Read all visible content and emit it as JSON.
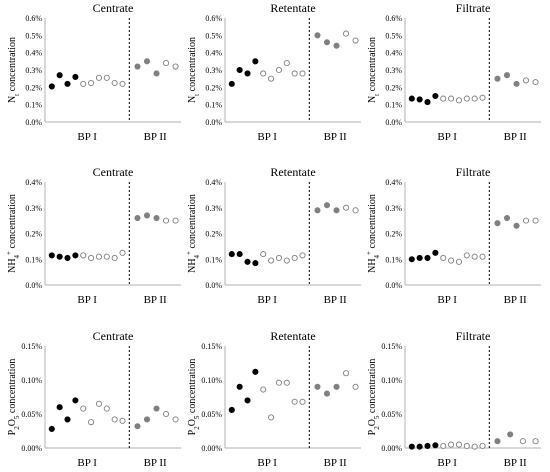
{
  "chart_data": [
    {
      "type": "scatter",
      "title": "Centrate",
      "ylabel": "N_t concentration",
      "ylim": [
        0,
        0.006
      ],
      "yticks": [
        "0.0%",
        "0.1%",
        "0.2%",
        "0.3%",
        "0.4%",
        "0.5%",
        "0.6%"
      ],
      "groups": [
        "BP I",
        "BP II"
      ],
      "series": [
        {
          "group": "BP I",
          "filled": true,
          "values": [
            0.00205,
            0.0027,
            0.0022,
            0.0026
          ]
        },
        {
          "group": "BP I",
          "filled": false,
          "values": [
            0.0022,
            0.00225,
            0.00255,
            0.00255,
            0.00225,
            0.0022
          ]
        },
        {
          "group": "BP II",
          "filled": "grey",
          "values": [
            0.0032,
            0.0035,
            0.0028
          ]
        },
        {
          "group": "BP II",
          "filled": false,
          "values": [
            0.0034,
            0.0032
          ]
        }
      ]
    },
    {
      "type": "scatter",
      "title": "Retentate",
      "ylabel": "N_t concentration",
      "ylim": [
        0,
        0.006
      ],
      "yticks": [
        "0.0%",
        "0.1%",
        "0.2%",
        "0.3%",
        "0.4%",
        "0.5%",
        "0.6%"
      ],
      "groups": [
        "BP I",
        "BP II"
      ],
      "series": [
        {
          "group": "BP I",
          "filled": true,
          "values": [
            0.0022,
            0.003,
            0.0028,
            0.0035
          ]
        },
        {
          "group": "BP I",
          "filled": false,
          "values": [
            0.0028,
            0.0025,
            0.003,
            0.0034,
            0.0028,
            0.0028
          ]
        },
        {
          "group": "BP II",
          "filled": "grey",
          "values": [
            0.005,
            0.0046,
            0.0044
          ]
        },
        {
          "group": "BP II",
          "filled": false,
          "values": [
            0.0051,
            0.0047
          ]
        }
      ]
    },
    {
      "type": "scatter",
      "title": "Filtrate",
      "ylabel": "N_t concentration",
      "ylim": [
        0,
        0.006
      ],
      "yticks": [
        "0.0%",
        "0.1%",
        "0.2%",
        "0.3%",
        "0.4%",
        "0.5%",
        "0.6%"
      ],
      "groups": [
        "BP I",
        "BP II"
      ],
      "series": [
        {
          "group": "BP I",
          "filled": true,
          "values": [
            0.00135,
            0.0013,
            0.00115,
            0.0015
          ]
        },
        {
          "group": "BP I",
          "filled": false,
          "values": [
            0.00135,
            0.00135,
            0.00125,
            0.00135,
            0.00135,
            0.0014
          ]
        },
        {
          "group": "BP II",
          "filled": "grey",
          "values": [
            0.0025,
            0.0027,
            0.0022
          ]
        },
        {
          "group": "BP II",
          "filled": false,
          "values": [
            0.0024,
            0.0023
          ]
        }
      ]
    },
    {
      "type": "scatter",
      "title": "Centrate",
      "ylabel": "NH4+ concentration",
      "ylim": [
        0,
        0.004
      ],
      "yticks": [
        "0.0%",
        "0.1%",
        "0.2%",
        "0.3%",
        "0.4%"
      ],
      "groups": [
        "BP I",
        "BP II"
      ],
      "series": [
        {
          "group": "BP I",
          "filled": true,
          "values": [
            0.00115,
            0.0011,
            0.00105,
            0.00115
          ]
        },
        {
          "group": "BP I",
          "filled": false,
          "values": [
            0.00115,
            0.00105,
            0.0011,
            0.0011,
            0.00105,
            0.00125
          ]
        },
        {
          "group": "BP II",
          "filled": "grey",
          "values": [
            0.0026,
            0.0027,
            0.0026
          ]
        },
        {
          "group": "BP II",
          "filled": false,
          "values": [
            0.0025,
            0.0025
          ]
        }
      ]
    },
    {
      "type": "scatter",
      "title": "Retentate",
      "ylabel": "NH4+ concentration",
      "ylim": [
        0,
        0.004
      ],
      "yticks": [
        "0.0%",
        "0.1%",
        "0.2%",
        "0.3%",
        "0.4%"
      ],
      "groups": [
        "BP I",
        "BP II"
      ],
      "series": [
        {
          "group": "BP I",
          "filled": true,
          "values": [
            0.0012,
            0.0012,
            0.0009,
            0.00085
          ]
        },
        {
          "group": "BP I",
          "filled": false,
          "values": [
            0.0012,
            0.00095,
            0.00105,
            0.00095,
            0.00105,
            0.00115
          ]
        },
        {
          "group": "BP II",
          "filled": "grey",
          "values": [
            0.0029,
            0.0031,
            0.0029
          ]
        },
        {
          "group": "BP II",
          "filled": false,
          "values": [
            0.003,
            0.0029
          ]
        }
      ]
    },
    {
      "type": "scatter",
      "title": "Filtrate",
      "ylabel": "NH4+ concentration",
      "ylim": [
        0,
        0.004
      ],
      "yticks": [
        "0.0%",
        "0.1%",
        "0.2%",
        "0.3%",
        "0.4%"
      ],
      "groups": [
        "BP I",
        "BP II"
      ],
      "series": [
        {
          "group": "BP I",
          "filled": true,
          "values": [
            0.001,
            0.00105,
            0.00105,
            0.00125
          ]
        },
        {
          "group": "BP I",
          "filled": false,
          "values": [
            0.00105,
            0.00095,
            0.0009,
            0.00115,
            0.0011,
            0.0011
          ]
        },
        {
          "group": "BP II",
          "filled": "grey",
          "values": [
            0.0024,
            0.0026,
            0.0023
          ]
        },
        {
          "group": "BP II",
          "filled": false,
          "values": [
            0.0025,
            0.0025
          ]
        }
      ]
    },
    {
      "type": "scatter",
      "title": "Centrate",
      "ylabel": "P2O5 concentration",
      "ylim": [
        0,
        0.0015
      ],
      "yticks": [
        "0.00%",
        "0.05%",
        "0.10%",
        "0.15%"
      ],
      "groups": [
        "BP I",
        "BP II"
      ],
      "series": [
        {
          "group": "BP I",
          "filled": true,
          "values": [
            0.00028,
            0.0006,
            0.00042,
            0.0007
          ]
        },
        {
          "group": "BP I",
          "filled": false,
          "values": [
            0.00058,
            0.00038,
            0.00065,
            0.00058,
            0.00042,
            0.0004
          ]
        },
        {
          "group": "BP II",
          "filled": "grey",
          "values": [
            0.00032,
            0.00042,
            0.00058
          ]
        },
        {
          "group": "BP II",
          "filled": false,
          "values": [
            0.0005,
            0.00042
          ]
        }
      ]
    },
    {
      "type": "scatter",
      "title": "Retentate",
      "ylabel": "P2O5 concentration",
      "ylim": [
        0,
        0.0015
      ],
      "yticks": [
        "0.00%",
        "0.05%",
        "0.10%",
        "0.15%"
      ],
      "groups": [
        "BP I",
        "BP II"
      ],
      "series": [
        {
          "group": "BP I",
          "filled": true,
          "values": [
            0.00056,
            0.0009,
            0.0007,
            0.00112
          ]
        },
        {
          "group": "BP I",
          "filled": false,
          "values": [
            0.00086,
            0.00045,
            0.00096,
            0.00096,
            0.00068,
            0.00068
          ]
        },
        {
          "group": "BP II",
          "filled": "grey",
          "values": [
            0.0009,
            0.0008,
            0.0009
          ]
        },
        {
          "group": "BP II",
          "filled": false,
          "values": [
            0.0011,
            0.0009
          ]
        }
      ]
    },
    {
      "type": "scatter",
      "title": "Filtrate",
      "ylabel": "P2O5 concentration",
      "ylim": [
        0,
        0.0015
      ],
      "yticks": [
        "0.00%",
        "0.05%",
        "0.10%",
        "0.15%"
      ],
      "groups": [
        "BP I",
        "BP II"
      ],
      "series": [
        {
          "group": "BP I",
          "filled": true,
          "values": [
            2e-05,
            2e-05,
            3e-05,
            4e-05
          ]
        },
        {
          "group": "BP I",
          "filled": false,
          "values": [
            3e-05,
            5e-05,
            5e-05,
            3e-05,
            2e-05,
            3e-05
          ]
        },
        {
          "group": "BP II",
          "filled": "grey",
          "values": [
            0.0001,
            0.0002
          ]
        },
        {
          "group": "BP II",
          "filled": false,
          "values": [
            0.0001,
            0.0001
          ]
        }
      ]
    }
  ],
  "colors": {
    "filled": "#000000",
    "grey": "#808080",
    "open_stroke": "#808080",
    "axis": "#b0b0b0",
    "divider": "#000000"
  }
}
